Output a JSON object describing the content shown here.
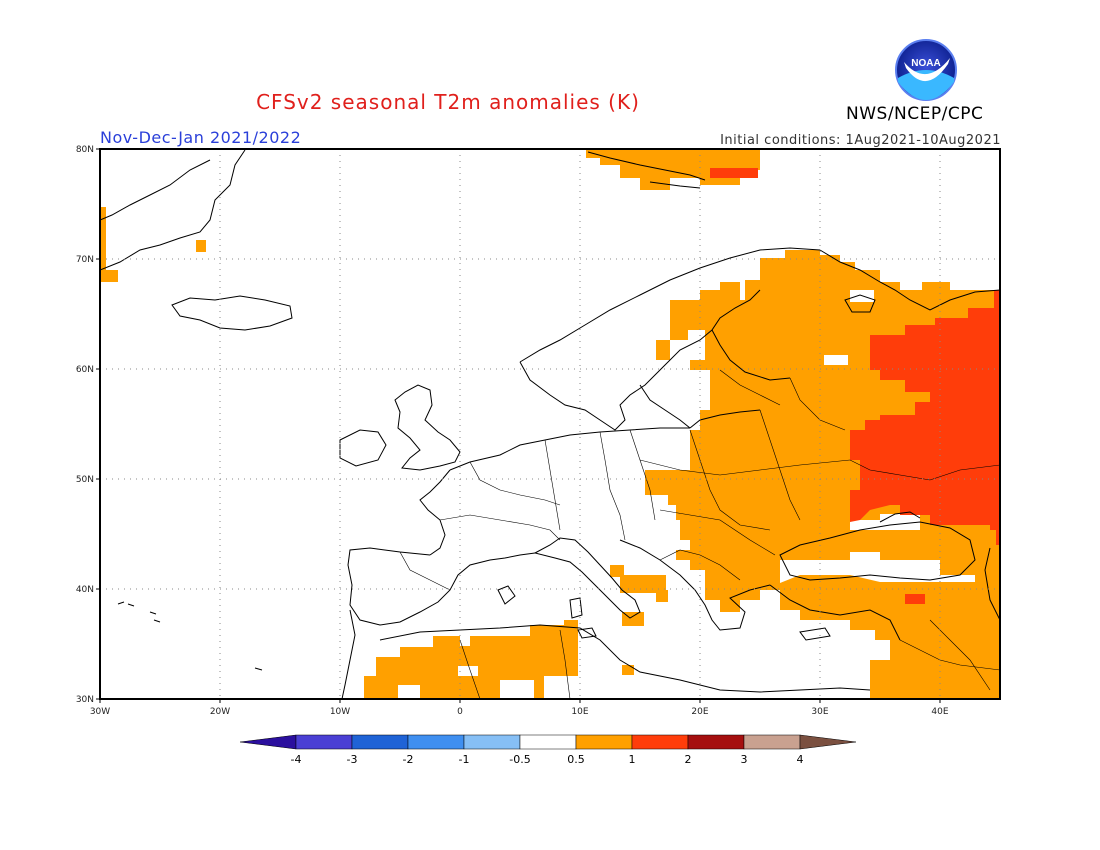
{
  "header": {
    "title": "CFSv2 seasonal T2m anomalies (K)",
    "agency": "NWS/NCEP/CPC",
    "season": "Nov-Dec-Jan 2021/2022",
    "initial_conditions": "Initial conditions: 1Aug2021-10Aug2021",
    "logo_text": "NOAA"
  },
  "map": {
    "lon_range": [
      -30,
      45
    ],
    "lat_range": [
      30,
      80
    ],
    "lat_labels": [
      "80N",
      "70N",
      "60N",
      "50N",
      "40N",
      "30N"
    ],
    "lon_labels": [
      "30W",
      "20W",
      "10W",
      "0",
      "10E",
      "20E",
      "30E",
      "40E"
    ],
    "gridlines": true
  },
  "colorbar": {
    "labels": [
      "-4",
      "-3",
      "-2",
      "-1",
      "-0.5",
      "0.5",
      "1",
      "2",
      "3",
      "4"
    ],
    "colors": [
      "#2b0f9e",
      "#4a3fd4",
      "#1f63d6",
      "#3f8ff0",
      "#86bff5",
      "#ffffff",
      "#ffa000",
      "#ff3d0a",
      "#a50f0f",
      "#c9a190",
      "#7b5040"
    ]
  },
  "anomaly_colors": {
    "above_0_5": "#ffa000",
    "above_1": "#ff3d0a",
    "above_2": "#a50f0f"
  }
}
